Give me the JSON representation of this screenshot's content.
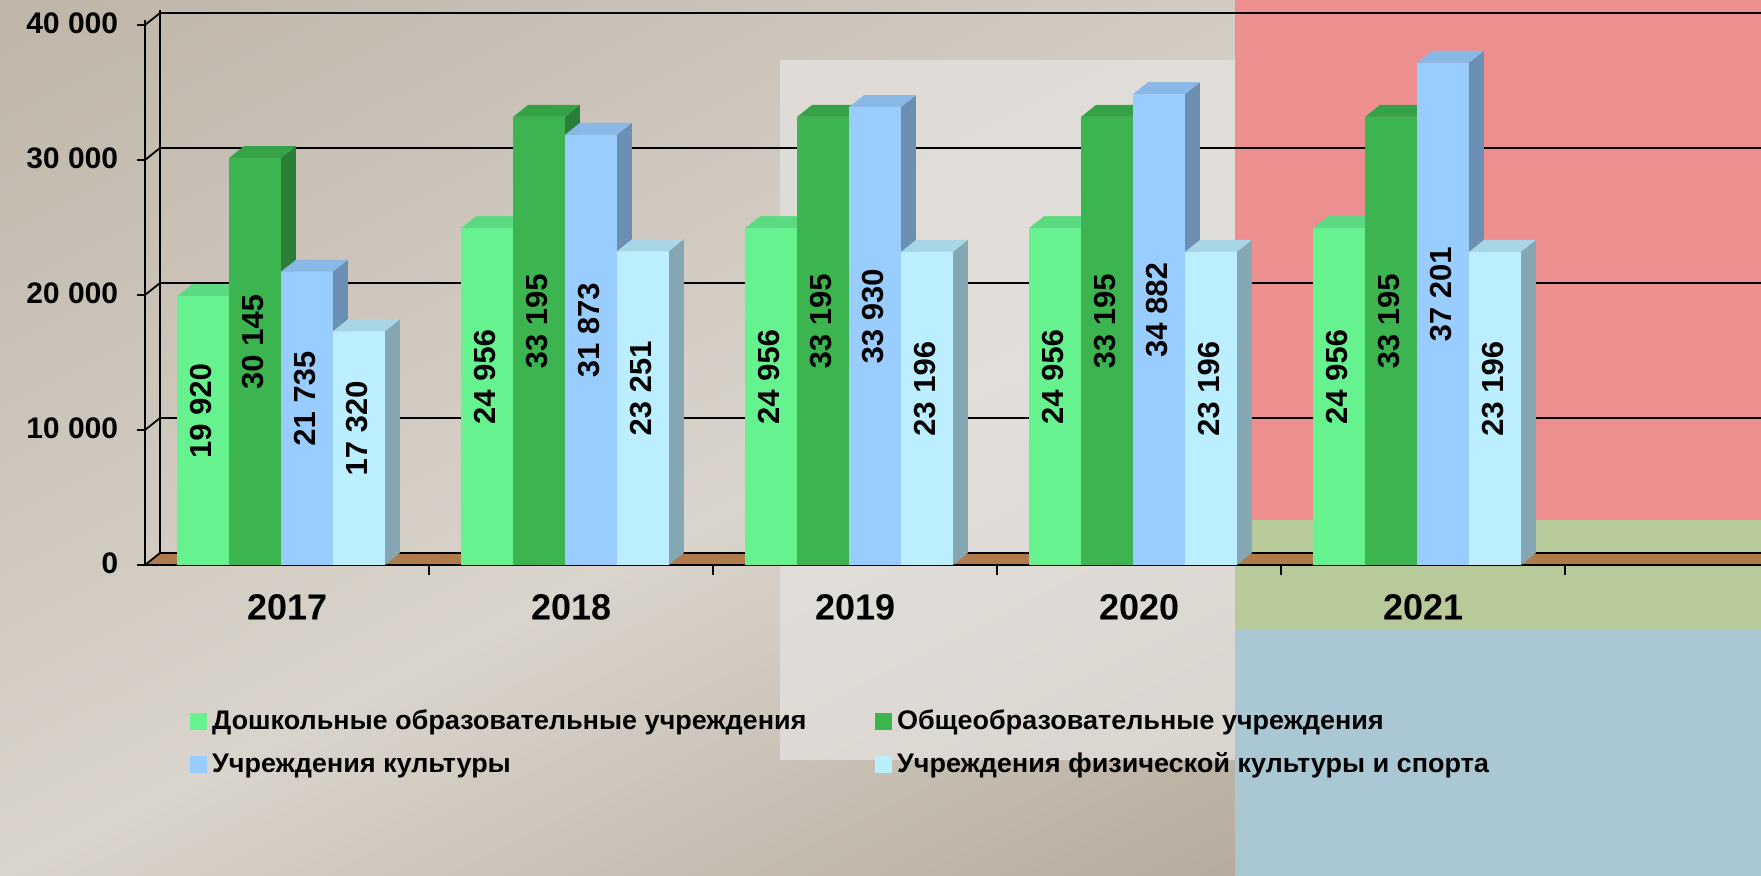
{
  "chart_data": {
    "type": "bar3d",
    "categories": [
      "2017",
      "2018",
      "2019",
      "2020",
      "2021"
    ],
    "series": [
      {
        "name": "Дошкольные образовательные учреждения",
        "color": "#66f28f",
        "values": [
          19920,
          24956,
          24956,
          24956,
          24956
        ],
        "value_labels": [
          "19 920",
          "24 956",
          "24 956",
          "24 956",
          "24 956"
        ]
      },
      {
        "name": "Общеобразовательные учреждения",
        "color": "#3cb44f",
        "values": [
          30145,
          33195,
          33195,
          33195,
          33195
        ],
        "value_labels": [
          "30 145",
          "33 195",
          "33 195",
          "33 195",
          "33 195"
        ]
      },
      {
        "name": "Учреждения культуры",
        "color": "#99ccff",
        "values": [
          21735,
          31873,
          33930,
          34882,
          37201
        ],
        "value_labels": [
          "21 735",
          "31 873",
          "33 930",
          "34 882",
          "37 201"
        ]
      },
      {
        "name": "Учреждения физической культуры и спорта",
        "color": "#bbeeff",
        "values": [
          17320,
          23251,
          23196,
          23196,
          23196
        ],
        "value_labels": [
          "17 320",
          "23 251",
          "23 196",
          "23 196",
          "23 196"
        ]
      }
    ],
    "ylim": [
      0,
      40000
    ],
    "yticks": [
      0,
      {
        "value": 10000,
        "label": "10 000"
      },
      {
        "value": 20000,
        "label": "20 000"
      },
      {
        "value": 30000,
        "label": "30 000"
      },
      {
        "value": 40000,
        "label": "40 000"
      }
    ],
    "grid": true,
    "legend": "bottom"
  }
}
